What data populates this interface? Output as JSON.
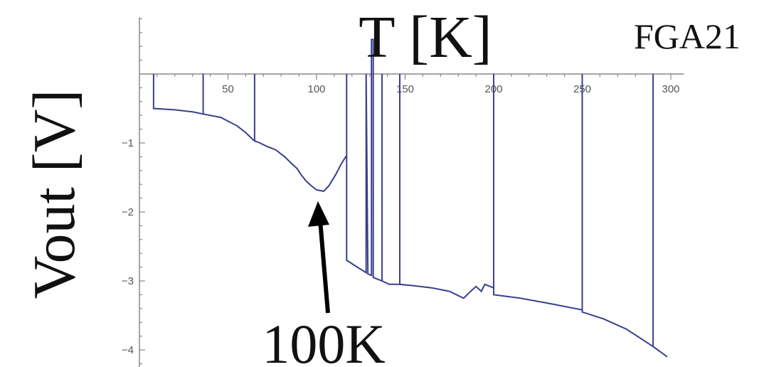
{
  "chart_data": {
    "type": "line",
    "title": "FGA21",
    "xlabel": "T [K]",
    "ylabel": "Vout [V]",
    "xlim": [
      0,
      305
    ],
    "ylim": [
      -4.2,
      0.8
    ],
    "x_ticks": [
      50,
      100,
      150,
      200,
      250,
      300
    ],
    "y_ticks": [
      -1,
      -2,
      -3,
      -4
    ],
    "grid": false,
    "line_color": "#3a3f8f",
    "annotation": {
      "text": "100K",
      "x": 100,
      "y": -1.7
    },
    "series": [
      {
        "points": [
          [
            8,
            0
          ],
          [
            8,
            -0.5
          ],
          [
            20,
            -0.52
          ],
          [
            30,
            -0.55
          ],
          [
            36,
            -0.58
          ],
          [
            36,
            0
          ],
          [
            36,
            -0.58
          ],
          [
            46,
            -0.63
          ],
          [
            55,
            -0.75
          ],
          [
            60,
            -0.85
          ],
          [
            64,
            -0.95
          ],
          [
            65,
            -0.97
          ],
          [
            65,
            0
          ],
          [
            65,
            -0.97
          ],
          [
            68,
            -1.0
          ],
          [
            72,
            -1.05
          ],
          [
            77,
            -1.1
          ],
          [
            82,
            -1.2
          ],
          [
            86,
            -1.3
          ],
          [
            89,
            -1.37
          ],
          [
            91,
            -1.45
          ],
          [
            94,
            -1.55
          ],
          [
            97,
            -1.62
          ],
          [
            100,
            -1.68
          ],
          [
            104,
            -1.7
          ],
          [
            107,
            -1.62
          ],
          [
            111,
            -1.45
          ],
          [
            114,
            -1.3
          ],
          [
            117,
            -1.18
          ],
          [
            117,
            0
          ],
          [
            117,
            -2.7
          ],
          [
            123,
            -2.8
          ],
          [
            128,
            -2.88
          ],
          [
            128,
            0
          ],
          [
            129,
            -2.9
          ],
          [
            131,
            -2.92
          ],
          [
            131,
            0.5
          ],
          [
            132,
            0.5
          ],
          [
            132,
            -2.95
          ],
          [
            135,
            -2.98
          ],
          [
            137,
            -3.0
          ],
          [
            137,
            0
          ],
          [
            137,
            -3.0
          ],
          [
            141,
            -3.05
          ],
          [
            147,
            -3.05
          ],
          [
            147,
            0
          ],
          [
            147,
            -3.05
          ],
          [
            155,
            -3.07
          ],
          [
            165,
            -3.1
          ],
          [
            175,
            -3.15
          ],
          [
            183,
            -3.25
          ],
          [
            187,
            -3.15
          ],
          [
            190,
            -3.08
          ],
          [
            193,
            -3.15
          ],
          [
            195,
            -3.05
          ],
          [
            198,
            -3.08
          ],
          [
            200,
            -3.1
          ],
          [
            200,
            0
          ],
          [
            200,
            -3.2
          ],
          [
            215,
            -3.25
          ],
          [
            230,
            -3.32
          ],
          [
            250,
            -3.42
          ],
          [
            250,
            0
          ],
          [
            250,
            -3.45
          ],
          [
            262,
            -3.55
          ],
          [
            275,
            -3.7
          ],
          [
            290,
            -3.95
          ],
          [
            290,
            0
          ],
          [
            290,
            -3.95
          ],
          [
            298,
            -4.1
          ]
        ]
      }
    ]
  }
}
